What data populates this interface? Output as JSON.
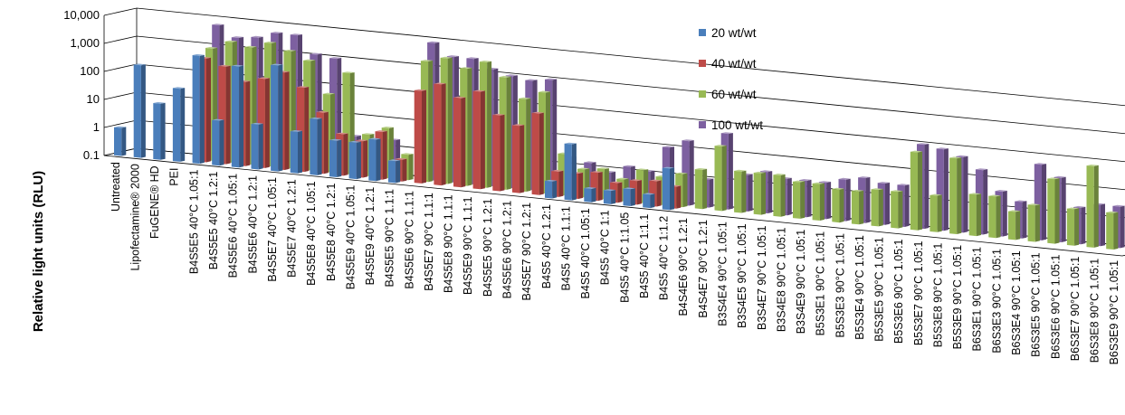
{
  "chart_data": {
    "type": "bar",
    "view": "3d-clustered-column",
    "ylabel": "Relative light units (RLU)",
    "yscale": "log",
    "ylim": [
      0.1,
      10000
    ],
    "yticks": [
      "0.1",
      "1",
      "10",
      "100",
      "1,000",
      "10,000"
    ],
    "grid": true,
    "legend_position": "top-right",
    "categories": [
      "Untreated",
      "Lipofectamine® 2000",
      "FuGENE® HD",
      "PEI",
      "B4S5E5 40°C 1.05:1",
      "B4S5E5 40°C 1.2:1",
      "B4S5E6 40°C 1.05:1",
      "B4S5E6 40°C 1.2:1",
      "B4S5E7 40°C 1.05:1",
      "B4S5E7 40°C 1.2:1",
      "B4S5E8 40°C 1.05:1",
      "B4S5E8 40°C 1.2:1",
      "B4S5E9 40°C 1.05:1",
      "B4S5E9 40°C 1.2:1",
      "B4S5E5 90°C 1.1:1",
      "B4S5E6 90°C 1.1:1",
      "B4S5E7 90°C 1.1:1",
      "B4S5E8 90°C 1.1:1",
      "B4S5E9 90°C 1.1:1",
      "B4S5E5 90°C 1.2:1",
      "B4S5E6 90°C 1.2:1",
      "B4S5E7 90°C 1.2:1",
      "B4S5 40°C 1.2:1",
      "B4S5 40°C 1.1:1",
      "B4S5 40°C 1.05:1",
      "B4S5 40°C 1:1",
      "B4S5 40°C 1:1.05",
      "B4S5 40°C 1:1.1",
      "B4S5 40°C 1:1.2",
      "B4S4E6 90°C 1.2:1",
      "B4S4E7 90°C 1.2:1",
      "B3S4E4 90°C 1.05:1",
      "B3S4E5 90°C 1.05:1",
      "B3S4E7 90°C 1.05:1",
      "B3S4E8 90°C 1.05:1",
      "B3S4E9 90°C 1.05:1",
      "B5S3E1 90°C 1.05:1",
      "B5S3E3 90°C 1.05:1",
      "B5S3E4 90°C 1.05:1",
      "B5S3E5 90°C 1.05:1",
      "B5S3E6 90°C 1.05:1",
      "B5S3E7 90°C 1.05:1",
      "B5S3E8 90°C 1.05:1",
      "B5S3E9 90°C 1.05:1",
      "B6S3E1 90°C 1.05:1",
      "B6S3E3 90°C 1.05:1",
      "B6S3E4 90°C 1.05:1",
      "B6S3E5 90°C 1.05:1",
      "B6S3E6 90°C 1.05:1",
      "B6S3E7 90°C 1.05:1",
      "B6S3E8 90°C 1.05:1",
      "B6S3E9 90°C 1.05:1"
    ],
    "series": [
      {
        "name": "20 wt/wt",
        "color": "#4a7ebb",
        "values": [
          1,
          200,
          10,
          40,
          700,
          4,
          400,
          4,
          600,
          3,
          10,
          2,
          2,
          3,
          0.6,
          null,
          null,
          null,
          null,
          null,
          null,
          null,
          0.4,
          10,
          0.3,
          0.3,
          0.4,
          0.3,
          3,
          null,
          null,
          null,
          null,
          null,
          null,
          null,
          null,
          null,
          null,
          null,
          null,
          null,
          null,
          null,
          null,
          null,
          null,
          null,
          null,
          null,
          null,
          null
        ]
      },
      {
        "name": "40 wt/wt",
        "color": "#be4b48",
        "values": [
          null,
          null,
          null,
          null,
          500,
          300,
          100,
          150,
          300,
          100,
          15,
          3,
          2,
          5,
          0.6,
          200,
          400,
          150,
          300,
          50,
          25,
          80,
          0.8,
          0.8,
          1,
          0.5,
          0.7,
          0.8,
          0.6,
          null,
          null,
          null,
          null,
          null,
          null,
          null,
          null,
          null,
          null,
          null,
          null,
          null,
          null,
          null,
          null,
          null,
          null,
          null,
          null,
          null,
          null,
          null
        ]
      },
      {
        "name": "60 wt/wt",
        "color": "#98b954",
        "values": [
          null,
          null,
          null,
          null,
          1000,
          2000,
          1500,
          2500,
          1500,
          800,
          60,
          400,
          3,
          6,
          0.8,
          2000,
          3000,
          1500,
          3000,
          1000,
          200,
          400,
          3,
          1,
          1.2,
          0.6,
          1.5,
          1,
          1.5,
          2.5,
          20,
          3,
          3,
          3,
          2,
          2,
          1.5,
          1.5,
          2,
          2,
          60,
          2,
          50,
          3,
          3,
          1,
          2,
          20,
          2,
          80,
          2,
          2
        ]
      },
      {
        "name": "100 wt/wt",
        "color": "#7d60a0",
        "values": [
          null,
          null,
          null,
          null,
          6000,
          2500,
          3000,
          5000,
          5000,
          1200,
          1000,
          2,
          0.8,
          2,
          null,
          8000,
          3000,
          3000,
          1500,
          1000,
          800,
          1000,
          2,
          1.5,
          0.8,
          1.5,
          1.2,
          10,
          20,
          1,
          50,
          2,
          3,
          2,
          2,
          2,
          3,
          4,
          3,
          3,
          100,
          80,
          50,
          20,
          4,
          2,
          50,
          20,
          2,
          3,
          3,
          3
        ]
      }
    ]
  }
}
